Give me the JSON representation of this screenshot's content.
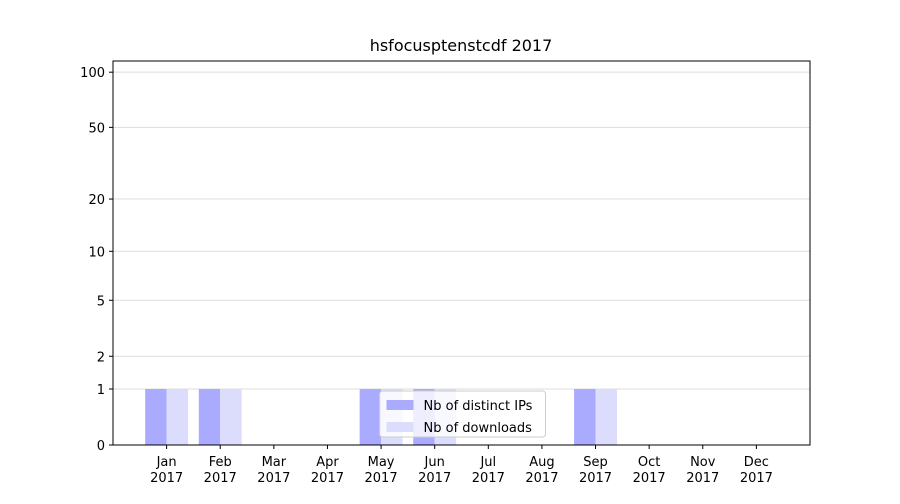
{
  "chart_data": {
    "type": "bar",
    "title": "hsfocusptenstcdf 2017",
    "categories": [
      "Jan\n2017",
      "Feb\n2017",
      "Mar\n2017",
      "Apr\n2017",
      "May\n2017",
      "Jun\n2017",
      "Jul\n2017",
      "Aug\n2017",
      "Sep\n2017",
      "Oct\n2017",
      "Nov\n2017",
      "Dec\n2017"
    ],
    "series": [
      {
        "name": "Nb of distinct IPs",
        "color": "#aaaaff",
        "values": [
          1,
          1,
          0,
          0,
          1,
          1,
          0,
          0,
          1,
          0,
          0,
          0
        ]
      },
      {
        "name": "Nb of downloads",
        "color": "#dcdcfc",
        "values": [
          1,
          1,
          0,
          0,
          1,
          1,
          0,
          0,
          1,
          0,
          0,
          0
        ]
      }
    ],
    "yscale": "log1p",
    "ylim": [
      0,
      115
    ],
    "yticks": [
      0,
      1,
      2,
      5,
      10,
      20,
      50,
      100
    ],
    "grid": true,
    "legend": "lower center"
  }
}
